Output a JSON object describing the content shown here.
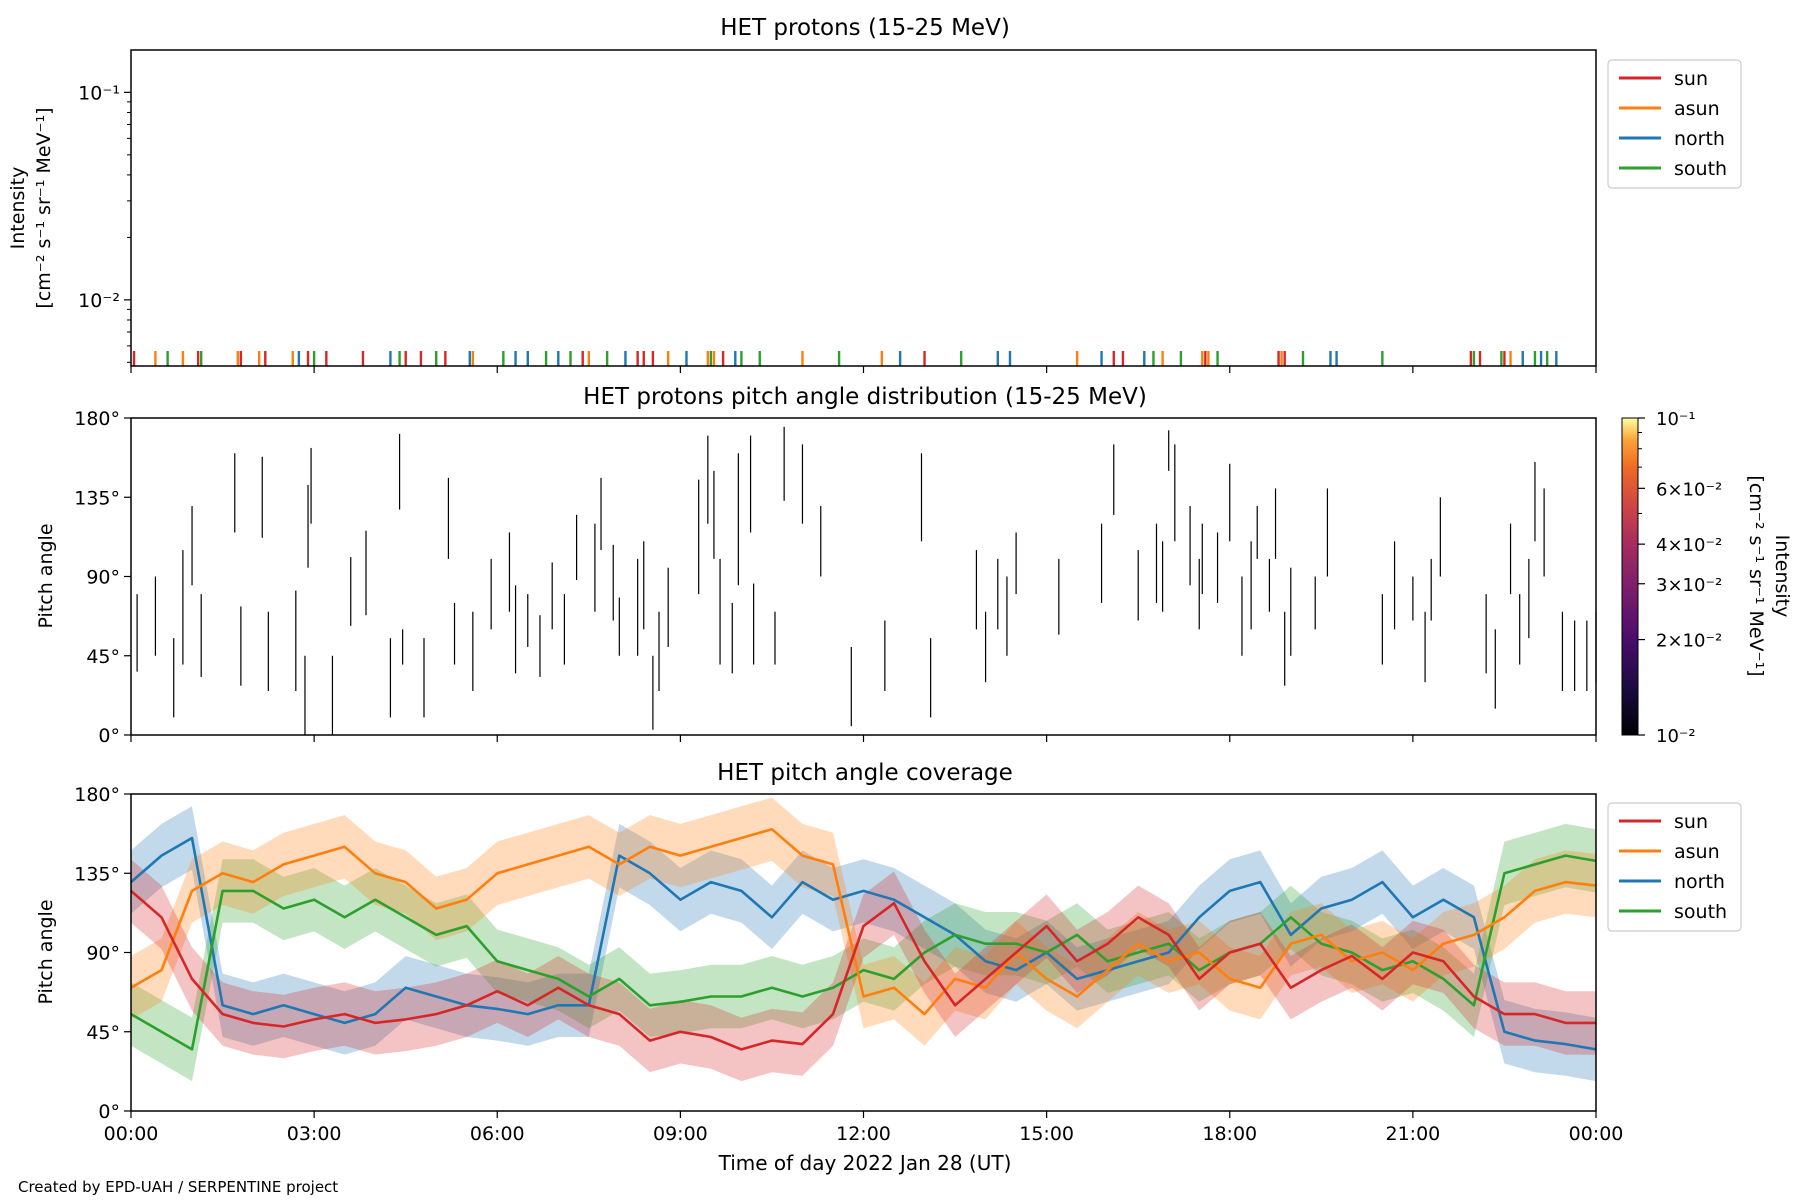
{
  "footer": "Created by EPD-UAH / SERPENTINE project",
  "xlabel": "Time of day 2022 Jan 28 (UT)",
  "x_ticks": [
    "00:00",
    "03:00",
    "06:00",
    "09:00",
    "12:00",
    "15:00",
    "18:00",
    "21:00",
    "00:00"
  ],
  "x_range_hours": [
    0,
    24
  ],
  "colors": {
    "sun": "#d62728",
    "asun": "#ff7f0e",
    "north": "#1f77b4",
    "south": "#2ca02c"
  },
  "chart_data": [
    {
      "type": "line",
      "title": "HET protons (15-25 MeV)",
      "ylabel_line1": "Intensity",
      "ylabel_line2": "[cm⁻² s⁻¹ sr⁻¹ MeV⁻¹]",
      "yscale": "log",
      "ylim": [
        0.0048,
        0.16
      ],
      "y_ticks": [
        "10⁻¹",
        "10⁻²"
      ],
      "legend": [
        "sun",
        "asun",
        "north",
        "south"
      ],
      "legend_position": "outside-right",
      "series": [
        {
          "name": "sun",
          "spike_hours": [
            0.05,
            1.1,
            1.8,
            2.2,
            2.9,
            3.2,
            3.8,
            4.5,
            4.75,
            5.15,
            7.4,
            8.3,
            8.4,
            8.55,
            9.7,
            13.0,
            16.1,
            16.25,
            17.6,
            18.8,
            18.9,
            21.95,
            22.1,
            22.5
          ]
        },
        {
          "name": "asun",
          "spike_hours": [
            0.4,
            0.85,
            1.75,
            2.1,
            2.65,
            5.6,
            7.5,
            8.8,
            9.45,
            9.55,
            11.0,
            12.3,
            15.5,
            16.9,
            17.55,
            17.65,
            18.85,
            22.6
          ]
        },
        {
          "name": "north",
          "spike_hours": [
            2.75,
            4.25,
            5.55,
            6.3,
            6.5,
            7.0,
            8.1,
            9.1,
            9.9,
            12.6,
            14.2,
            14.4,
            15.9,
            16.6,
            19.65,
            19.75,
            22.8,
            23.1,
            23.35
          ]
        },
        {
          "name": "south",
          "spike_hours": [
            0.6,
            1.15,
            3.0,
            4.4,
            5.0,
            6.1,
            6.8,
            7.2,
            7.8,
            9.5,
            10.0,
            10.3,
            11.6,
            13.6,
            16.75,
            17.2,
            17.8,
            19.2,
            20.5,
            22.0,
            22.45,
            23.0,
            23.2
          ]
        }
      ]
    },
    {
      "type": "heatmap",
      "title": "HET protons pitch angle distribution (15-25 MeV)",
      "ylabel": "Pitch angle",
      "ylim": [
        0,
        180
      ],
      "y_ticks": [
        "0°",
        "45°",
        "90°",
        "135°",
        "180°"
      ],
      "colorbar": {
        "label_line1": "Intensity",
        "label_line2": "[cm⁻² s⁻¹ sr⁻¹ MeV⁻¹]",
        "scale": "log",
        "range": [
          0.01,
          0.1
        ],
        "colormap": "inferno",
        "ticks": [
          {
            "value": 0.1,
            "label": "10⁻¹"
          },
          {
            "value": 0.06,
            "label": "6×10⁻²"
          },
          {
            "value": 0.04,
            "label": "4×10⁻²"
          },
          {
            "value": 0.03,
            "label": "3×10⁻²"
          },
          {
            "value": 0.02,
            "label": "2×10⁻²"
          },
          {
            "value": 0.01,
            "label": "10⁻²"
          }
        ]
      },
      "segments": [
        [
          0.1,
          36,
          80
        ],
        [
          0.4,
          45,
          90
        ],
        [
          0.7,
          10,
          55
        ],
        [
          0.85,
          40,
          105
        ],
        [
          1.0,
          85,
          130
        ],
        [
          1.15,
          33,
          80
        ],
        [
          1.7,
          115,
          160
        ],
        [
          1.8,
          28,
          73
        ],
        [
          2.15,
          112,
          158
        ],
        [
          2.25,
          25,
          70
        ],
        [
          2.7,
          25,
          82
        ],
        [
          2.85,
          0,
          45
        ],
        [
          2.9,
          95,
          142
        ],
        [
          2.95,
          120,
          163
        ],
        [
          3.3,
          0,
          45
        ],
        [
          3.6,
          62,
          101
        ],
        [
          3.85,
          68,
          116
        ],
        [
          4.25,
          10,
          55
        ],
        [
          4.4,
          128,
          171
        ],
        [
          4.45,
          40,
          60
        ],
        [
          4.8,
          10,
          55
        ],
        [
          5.2,
          100,
          146
        ],
        [
          5.3,
          40,
          75
        ],
        [
          5.6,
          25,
          70
        ],
        [
          5.9,
          60,
          100
        ],
        [
          6.2,
          70,
          115
        ],
        [
          6.3,
          35,
          85
        ],
        [
          6.5,
          50,
          80
        ],
        [
          6.7,
          33,
          68
        ],
        [
          6.9,
          60,
          98
        ],
        [
          7.1,
          40,
          80
        ],
        [
          7.3,
          88,
          125
        ],
        [
          7.6,
          70,
          120
        ],
        [
          7.7,
          105,
          146
        ],
        [
          7.9,
          65,
          108
        ],
        [
          8.0,
          45,
          78
        ],
        [
          8.3,
          45,
          100
        ],
        [
          8.4,
          60,
          110
        ],
        [
          8.55,
          3,
          45
        ],
        [
          8.65,
          25,
          70
        ],
        [
          8.8,
          50,
          95
        ],
        [
          9.3,
          80,
          145
        ],
        [
          9.45,
          120,
          170
        ],
        [
          9.55,
          100,
          150
        ],
        [
          9.65,
          40,
          100
        ],
        [
          9.85,
          35,
          75
        ],
        [
          9.95,
          85,
          160
        ],
        [
          10.15,
          115,
          170
        ],
        [
          10.2,
          40,
          86
        ],
        [
          10.55,
          40,
          70
        ],
        [
          10.7,
          133,
          175
        ],
        [
          11.0,
          120,
          165
        ],
        [
          11.3,
          90,
          130
        ],
        [
          11.8,
          5,
          50
        ],
        [
          12.35,
          25,
          65
        ],
        [
          12.95,
          110,
          160
        ],
        [
          13.1,
          10,
          55
        ],
        [
          13.85,
          60,
          105
        ],
        [
          14.0,
          30,
          70
        ],
        [
          14.2,
          60,
          100
        ],
        [
          14.35,
          45,
          90
        ],
        [
          14.5,
          80,
          115
        ],
        [
          15.2,
          57,
          100
        ],
        [
          15.9,
          75,
          120
        ],
        [
          16.1,
          125,
          165
        ],
        [
          16.5,
          65,
          105
        ],
        [
          16.8,
          75,
          120
        ],
        [
          16.9,
          70,
          110
        ],
        [
          17.0,
          150,
          173
        ],
        [
          17.1,
          110,
          165
        ],
        [
          17.35,
          85,
          130
        ],
        [
          17.5,
          60,
          100
        ],
        [
          17.55,
          80,
          120
        ],
        [
          17.8,
          75,
          115
        ],
        [
          18.0,
          110,
          154
        ],
        [
          18.2,
          45,
          90
        ],
        [
          18.35,
          60,
          110
        ],
        [
          18.45,
          100,
          130
        ],
        [
          18.65,
          70,
          100
        ],
        [
          18.75,
          100,
          140
        ],
        [
          18.9,
          28,
          70
        ],
        [
          19.0,
          45,
          95
        ],
        [
          19.4,
          60,
          90
        ],
        [
          19.6,
          90,
          140
        ],
        [
          20.5,
          40,
          80
        ],
        [
          20.7,
          60,
          110
        ],
        [
          21.0,
          65,
          90
        ],
        [
          21.2,
          30,
          70
        ],
        [
          21.3,
          65,
          100
        ],
        [
          21.45,
          90,
          135
        ],
        [
          22.2,
          35,
          80
        ],
        [
          22.35,
          15,
          60
        ],
        [
          22.6,
          80,
          120
        ],
        [
          22.75,
          40,
          80
        ],
        [
          22.9,
          55,
          100
        ],
        [
          23.0,
          110,
          155
        ],
        [
          23.15,
          90,
          140
        ],
        [
          23.45,
          25,
          70
        ],
        [
          23.65,
          25,
          65
        ],
        [
          23.85,
          25,
          65
        ],
        [
          24.0,
          30,
          70
        ]
      ]
    },
    {
      "type": "line",
      "title": "HET pitch angle coverage",
      "ylabel": "Pitch angle",
      "ylim": [
        0,
        180
      ],
      "y_ticks": [
        "0°",
        "45°",
        "90°",
        "135°",
        "180°"
      ],
      "legend": [
        "sun",
        "asun",
        "north",
        "south"
      ],
      "legend_position": "outside-right",
      "series": [
        {
          "name": "sun",
          "hours": [
            0,
            0.5,
            1,
            1.5,
            2,
            2.5,
            3,
            3.5,
            4,
            4.5,
            5,
            5.5,
            6,
            6.5,
            7,
            7.5,
            8,
            8.5,
            9,
            9.5,
            10,
            10.5,
            11,
            11.5,
            12,
            12.5,
            13,
            13.5,
            14,
            14.5,
            15,
            15.5,
            16,
            16.5,
            17,
            17.5,
            18,
            18.5,
            19,
            19.5,
            20,
            20.5,
            21,
            21.5,
            22,
            22.5,
            23,
            23.5,
            24
          ],
          "values": [
            125,
            110,
            75,
            55,
            50,
            48,
            52,
            55,
            50,
            52,
            55,
            60,
            68,
            60,
            70,
            60,
            55,
            40,
            45,
            42,
            35,
            40,
            38,
            55,
            105,
            118,
            85,
            60,
            75,
            90,
            105,
            85,
            95,
            110,
            100,
            75,
            90,
            95,
            70,
            80,
            88,
            75,
            90,
            85,
            65,
            55,
            55,
            50,
            50
          ]
        },
        {
          "name": "asun",
          "hours": [
            0,
            0.5,
            1,
            1.5,
            2,
            2.5,
            3,
            3.5,
            4,
            4.5,
            5,
            5.5,
            6,
            6.5,
            7,
            7.5,
            8,
            8.5,
            9,
            9.5,
            10,
            10.5,
            11,
            11.5,
            12,
            12.5,
            13,
            13.5,
            14,
            14.5,
            15,
            15.5,
            16,
            16.5,
            17,
            17.5,
            18,
            18.5,
            19,
            19.5,
            20,
            20.5,
            21,
            21.5,
            22,
            22.5,
            23,
            23.5,
            24
          ],
          "values": [
            70,
            80,
            125,
            135,
            130,
            140,
            145,
            150,
            135,
            130,
            115,
            120,
            135,
            140,
            145,
            150,
            140,
            150,
            145,
            150,
            155,
            160,
            145,
            140,
            65,
            70,
            55,
            75,
            70,
            90,
            75,
            65,
            80,
            95,
            85,
            90,
            75,
            70,
            95,
            100,
            85,
            90,
            80,
            95,
            100,
            110,
            125,
            130,
            128
          ]
        },
        {
          "name": "north",
          "hours": [
            0,
            0.5,
            1,
            1.5,
            2,
            2.5,
            3,
            3.5,
            4,
            4.5,
            5,
            5.5,
            6,
            6.5,
            7,
            7.5,
            8,
            8.5,
            9,
            9.5,
            10,
            10.5,
            11,
            11.5,
            12,
            12.5,
            13,
            13.5,
            14,
            14.5,
            15,
            15.5,
            16,
            16.5,
            17,
            17.5,
            18,
            18.5,
            19,
            19.5,
            20,
            20.5,
            21,
            21.5,
            22,
            22.5,
            23,
            23.5,
            24
          ],
          "values": [
            130,
            145,
            155,
            60,
            55,
            60,
            55,
            50,
            55,
            70,
            65,
            60,
            58,
            55,
            60,
            60,
            145,
            135,
            120,
            130,
            125,
            110,
            130,
            120,
            125,
            120,
            110,
            100,
            85,
            80,
            90,
            75,
            80,
            85,
            90,
            110,
            125,
            130,
            100,
            115,
            120,
            130,
            110,
            120,
            110,
            45,
            40,
            38,
            35
          ]
        },
        {
          "name": "south",
          "hours": [
            0,
            0.5,
            1,
            1.5,
            2,
            2.5,
            3,
            3.5,
            4,
            4.5,
            5,
            5.5,
            6,
            6.5,
            7,
            7.5,
            8,
            8.5,
            9,
            9.5,
            10,
            10.5,
            11,
            11.5,
            12,
            12.5,
            13,
            13.5,
            14,
            14.5,
            15,
            15.5,
            16,
            16.5,
            17,
            17.5,
            18,
            18.5,
            19,
            19.5,
            20,
            20.5,
            21,
            21.5,
            22,
            22.5,
            23,
            23.5,
            24
          ],
          "values": [
            55,
            45,
            35,
            125,
            125,
            115,
            120,
            110,
            120,
            110,
            100,
            105,
            85,
            80,
            75,
            65,
            75,
            60,
            62,
            65,
            65,
            70,
            65,
            70,
            80,
            75,
            90,
            100,
            95,
            95,
            90,
            100,
            85,
            90,
            95,
            80,
            90,
            95,
            110,
            95,
            90,
            80,
            85,
            75,
            60,
            135,
            140,
            145,
            142
          ]
        }
      ]
    }
  ]
}
